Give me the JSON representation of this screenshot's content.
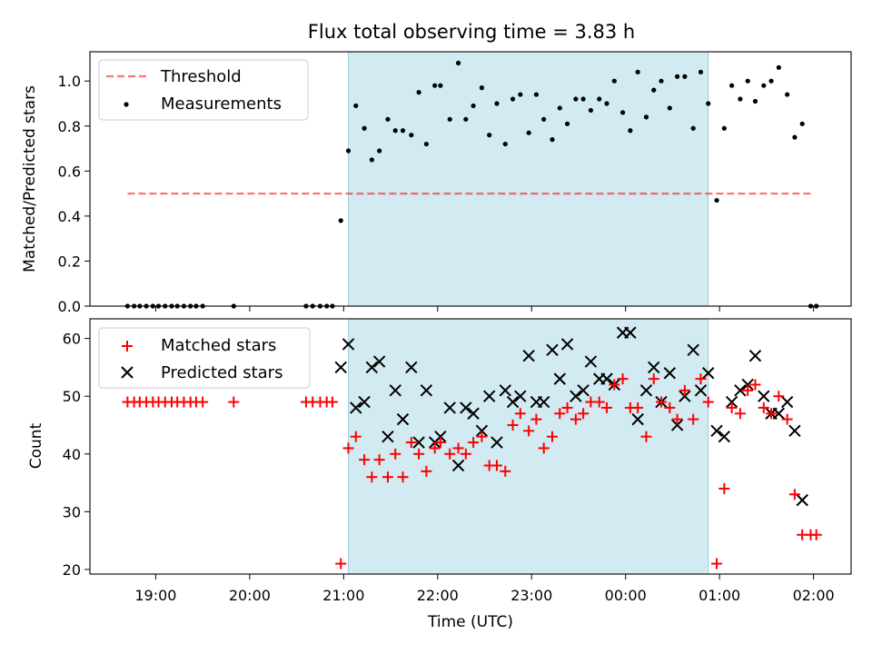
{
  "title": "Flux total observing time = 3.83 h",
  "colors": {
    "highlight": "#add8e6",
    "threshold": "#ff0000",
    "measurements": "#000000",
    "matched": "#ff0000",
    "predicted": "#000000"
  },
  "chart_data": [
    {
      "type": "scatter",
      "title": "Flux total observing time = 3.83 h",
      "xlabel": "",
      "ylabel": "Matched/Predicted stars",
      "xlim_hours": [
        18.3,
        26.4
      ],
      "ylim": [
        0,
        1.13
      ],
      "yticks": [
        "0.0",
        "0.2",
        "0.4",
        "0.6",
        "0.8",
        "1.0"
      ],
      "legend_position": "upper-left",
      "highlight_span_hours": [
        21.05,
        24.88
      ],
      "threshold": {
        "name": "Threshold",
        "y": 0.5,
        "x_hours": [
          18.7,
          26.0
        ],
        "style": "dashed"
      },
      "series": [
        {
          "name": "Measurements",
          "x_hours": [
            18.7,
            18.77,
            18.83,
            18.9,
            18.97,
            19.03,
            19.1,
            19.17,
            19.23,
            19.3,
            19.37,
            19.43,
            19.5,
            19.83,
            20.6,
            20.67,
            20.75,
            20.82,
            20.88,
            20.97,
            21.05,
            21.13,
            21.22,
            21.3,
            21.38,
            21.47,
            21.55,
            21.63,
            21.72,
            21.8,
            21.88,
            21.97,
            22.03,
            22.13,
            22.22,
            22.3,
            22.38,
            22.47,
            22.55,
            22.63,
            22.72,
            22.8,
            22.88,
            22.97,
            23.05,
            23.13,
            23.22,
            23.3,
            23.38,
            23.47,
            23.55,
            23.63,
            23.72,
            23.8,
            23.88,
            23.97,
            24.05,
            24.13,
            24.22,
            24.3,
            24.38,
            24.47,
            24.55,
            24.63,
            24.72,
            24.8,
            24.88,
            24.97,
            25.05,
            25.13,
            25.22,
            25.3,
            25.38,
            25.47,
            25.55,
            25.63,
            25.72,
            25.8,
            25.88,
            25.97,
            26.03
          ],
          "y": [
            0,
            0,
            0,
            0,
            0,
            0,
            0,
            0,
            0,
            0,
            0,
            0,
            0,
            0,
            0,
            0,
            0,
            0,
            0,
            0.38,
            0.69,
            0.89,
            0.79,
            0.65,
            0.69,
            0.83,
            0.78,
            0.78,
            0.76,
            0.95,
            0.72,
            0.98,
            0.98,
            0.83,
            1.08,
            0.83,
            0.89,
            0.97,
            0.76,
            0.9,
            0.72,
            0.92,
            0.94,
            0.77,
            0.94,
            0.83,
            0.74,
            0.88,
            0.81,
            0.92,
            0.92,
            0.87,
            0.92,
            0.9,
            1.0,
            0.86,
            0.78,
            1.04,
            0.84,
            0.96,
            1.0,
            0.88,
            1.02,
            1.02,
            0.79,
            1.04,
            0.9,
            0.47,
            0.79,
            0.98,
            0.92,
            1.0,
            0.91,
            0.98,
            1.0,
            1.06,
            0.94,
            0.75,
            0.81,
            0,
            0
          ]
        }
      ]
    },
    {
      "type": "scatter",
      "title": "",
      "xlabel": "Time (UTC)",
      "ylabel": "Count",
      "xlim_hours": [
        18.3,
        26.4
      ],
      "ylim": [
        19.2,
        63.4
      ],
      "yticks": [
        "20",
        "30",
        "40",
        "50",
        "60"
      ],
      "xticks": [
        "19:00",
        "20:00",
        "21:00",
        "22:00",
        "23:00",
        "00:00",
        "01:00",
        "02:00"
      ],
      "legend_position": "upper-left",
      "highlight_span_hours": [
        21.05,
        24.88
      ],
      "series": [
        {
          "name": "Matched stars",
          "marker": "plus",
          "x_hours": [
            18.7,
            18.77,
            18.83,
            18.9,
            18.97,
            19.03,
            19.1,
            19.17,
            19.23,
            19.3,
            19.37,
            19.43,
            19.5,
            19.83,
            20.6,
            20.67,
            20.75,
            20.82,
            20.88,
            20.97,
            21.05,
            21.13,
            21.22,
            21.3,
            21.38,
            21.47,
            21.55,
            21.63,
            21.72,
            21.8,
            21.88,
            21.97,
            22.03,
            22.13,
            22.22,
            22.3,
            22.38,
            22.47,
            22.55,
            22.63,
            22.72,
            22.8,
            22.88,
            22.97,
            23.05,
            23.13,
            23.22,
            23.3,
            23.38,
            23.47,
            23.55,
            23.63,
            23.72,
            23.8,
            23.88,
            23.97,
            24.05,
            24.13,
            24.22,
            24.3,
            24.38,
            24.47,
            24.55,
            24.63,
            24.72,
            24.8,
            24.88,
            24.97,
            25.05,
            25.13,
            25.22,
            25.3,
            25.38,
            25.47,
            25.55,
            25.63,
            25.72,
            25.8,
            25.88,
            25.97,
            26.03
          ],
          "y": [
            49,
            49,
            49,
            49,
            49,
            49,
            49,
            49,
            49,
            49,
            49,
            49,
            49,
            49,
            49,
            49,
            49,
            49,
            49,
            21,
            41,
            43,
            39,
            36,
            39,
            36,
            40,
            36,
            42,
            40,
            37,
            41,
            42,
            40,
            41,
            40,
            42,
            43,
            38,
            38,
            37,
            45,
            47,
            44,
            46,
            41,
            43,
            47,
            48,
            46,
            47,
            49,
            49,
            48,
            52,
            53,
            48,
            48,
            43,
            53,
            49,
            48,
            46,
            51,
            46,
            53,
            49,
            21,
            34,
            48,
            47,
            51,
            52,
            48,
            47,
            50,
            46,
            33,
            26,
            26,
            26
          ]
        },
        {
          "name": "Predicted stars",
          "marker": "x",
          "x_hours": [
            20.97,
            21.05,
            21.13,
            21.22,
            21.3,
            21.38,
            21.47,
            21.55,
            21.63,
            21.72,
            21.8,
            21.88,
            21.97,
            22.03,
            22.13,
            22.22,
            22.3,
            22.38,
            22.47,
            22.55,
            22.63,
            22.72,
            22.8,
            22.88,
            22.97,
            23.05,
            23.13,
            23.22,
            23.3,
            23.38,
            23.47,
            23.55,
            23.63,
            23.72,
            23.8,
            23.88,
            23.97,
            24.05,
            24.13,
            24.22,
            24.3,
            24.38,
            24.47,
            24.55,
            24.63,
            24.72,
            24.8,
            24.88,
            24.97,
            25.05,
            25.13,
            25.22,
            25.3,
            25.38,
            25.47,
            25.55,
            25.63,
            25.72,
            25.8,
            25.88
          ],
          "y": [
            55,
            59,
            48,
            49,
            55,
            56,
            43,
            51,
            46,
            55,
            42,
            51,
            42,
            43,
            48,
            38,
            48,
            47,
            44,
            50,
            42,
            51,
            49,
            50,
            57,
            49,
            49,
            58,
            53,
            59,
            50,
            51,
            56,
            53,
            53,
            52,
            61,
            61,
            46,
            51,
            55,
            49,
            54,
            45,
            50,
            58,
            51,
            54,
            44,
            43,
            49,
            51,
            52,
            57,
            50,
            47,
            47,
            49,
            44,
            32
          ]
        }
      ]
    }
  ]
}
